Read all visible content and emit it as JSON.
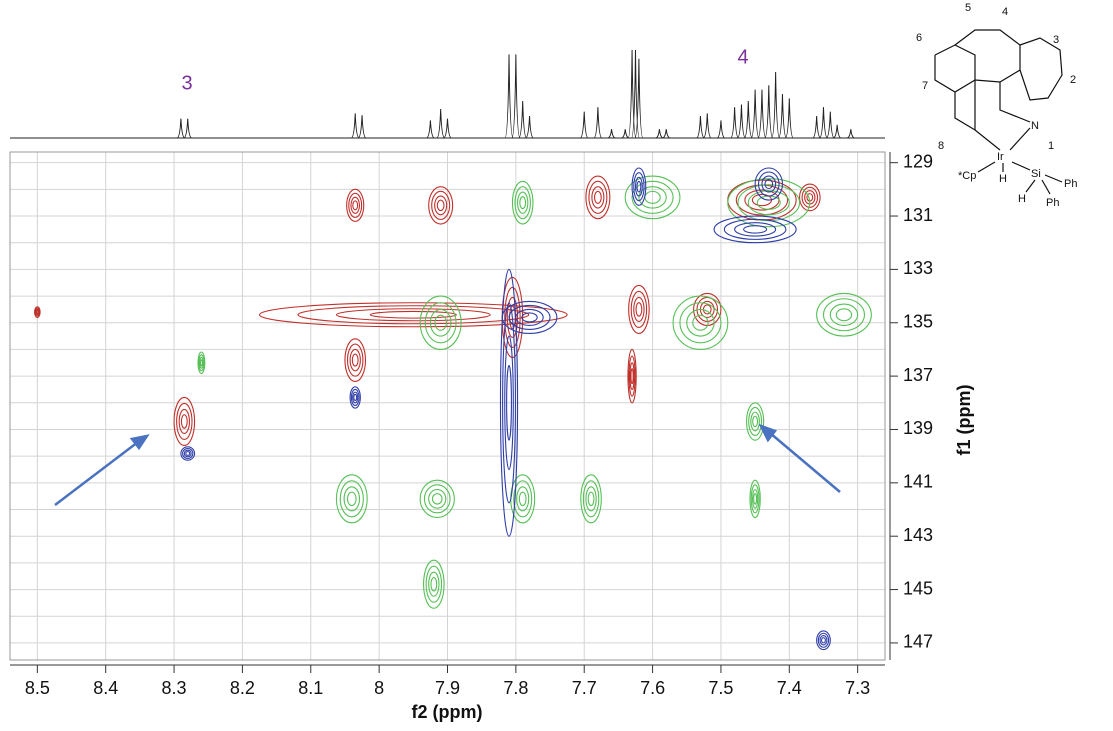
{
  "chart_data": {
    "type": "contour",
    "x_label": "f2 (ppm)",
    "y_label": "f1 (ppm)",
    "annotations": [
      "3",
      "4"
    ],
    "xlim": [
      8.54,
      7.26
    ],
    "ylim": [
      128.6,
      147.64
    ],
    "xticks": [
      8.5,
      8.4,
      8.3,
      8.2,
      8.1,
      8.0,
      7.9,
      7.8,
      7.7,
      7.6,
      7.5,
      7.4,
      7.3
    ],
    "yticks": [
      129,
      131,
      133,
      135,
      137,
      139,
      141,
      143,
      145,
      147
    ],
    "y_gridlines": [
      129,
      130,
      131,
      132,
      133,
      134,
      135,
      136,
      137,
      138,
      139,
      140,
      141,
      142,
      143,
      144,
      145,
      146,
      147
    ],
    "grid": true,
    "projection": {
      "x": [
        8.29,
        8.28,
        8.035,
        8.025,
        7.925,
        7.91,
        7.9,
        7.81,
        7.8,
        7.79,
        7.78,
        7.7,
        7.68,
        7.66,
        7.64,
        7.63,
        7.625,
        7.62,
        7.59,
        7.58,
        7.53,
        7.52,
        7.5,
        7.48,
        7.47,
        7.46,
        7.45,
        7.44,
        7.43,
        7.42,
        7.41,
        7.4,
        7.36,
        7.35,
        7.34,
        7.33,
        7.31
      ],
      "heights": [
        0.22,
        0.22,
        0.28,
        0.26,
        0.2,
        0.33,
        0.22,
        0.95,
        0.95,
        0.42,
        0.25,
        0.3,
        0.35,
        0.1,
        0.1,
        1,
        1,
        0.9,
        0.1,
        0.1,
        0.25,
        0.28,
        0.2,
        0.35,
        0.38,
        0.42,
        0.55,
        0.55,
        0.6,
        0.75,
        0.5,
        0.45,
        0.25,
        0.35,
        0.3,
        0.15,
        0.1
      ]
    },
    "series": [
      {
        "color": "#c0302b",
        "x": [
          8.285,
          8.035,
          8.035,
          7.91,
          7.805,
          7.68,
          7.62,
          7.63,
          7.52,
          7.44,
          7.37,
          8.5,
          7.95
        ],
        "y": [
          138.7,
          130.6,
          136.4,
          130.6,
          134.8,
          130.3,
          134.5,
          137.0,
          134.5,
          130.4,
          130.3,
          134.6,
          134.7
        ],
        "dx": [
          0.03,
          0.025,
          0.03,
          0.035,
          0.03,
          0.035,
          0.03,
          0.012,
          0.04,
          0.1,
          0.03,
          0.008,
          0.45
        ],
        "dy": [
          1.8,
          1.2,
          1.6,
          1.4,
          3.0,
          1.6,
          1.8,
          2.0,
          1.2,
          1.5,
          1.0,
          0.4,
          0.9
        ]
      },
      {
        "color": "#55c055",
        "x": [
          8.04,
          7.915,
          7.92,
          7.79,
          7.69,
          7.45,
          7.45,
          7.91,
          7.53,
          8.26,
          7.79,
          7.43,
          7.6,
          7.32
        ],
        "y": [
          141.6,
          141.6,
          144.8,
          141.6,
          141.6,
          138.7,
          141.6,
          135.0,
          135.0,
          136.5,
          130.5,
          130.5,
          130.3,
          134.7
        ],
        "dx": [
          0.045,
          0.05,
          0.03,
          0.035,
          0.03,
          0.025,
          0.015,
          0.06,
          0.08,
          0.01,
          0.03,
          0.12,
          0.08,
          0.08
        ],
        "dy": [
          1.8,
          1.4,
          1.8,
          1.8,
          1.8,
          1.4,
          1.4,
          2.0,
          2.0,
          0.8,
          1.6,
          1.8,
          1.6,
          1.6
        ]
      },
      {
        "color": "#2e3da8",
        "x": [
          8.28,
          8.035,
          7.81,
          7.45,
          7.35,
          7.43,
          7.62,
          7.78
        ],
        "y": [
          139.9,
          137.8,
          138.0,
          131.5,
          146.9,
          129.8,
          129.9,
          134.8
        ],
        "dx": [
          0.02,
          0.015,
          0.025,
          0.12,
          0.02,
          0.04,
          0.02,
          0.08
        ],
        "dy": [
          0.5,
          0.8,
          10.0,
          1.0,
          0.7,
          1.2,
          1.4,
          1.2
        ]
      }
    ]
  },
  "structure": {
    "atom_numbers": [
      "1",
      "2",
      "3",
      "4",
      "5",
      "6",
      "7",
      "8"
    ],
    "atoms": [
      "N",
      "Ir",
      "Si"
    ],
    "ligands": [
      "*Cp",
      "H",
      "H",
      "Ph",
      "Ph"
    ]
  }
}
